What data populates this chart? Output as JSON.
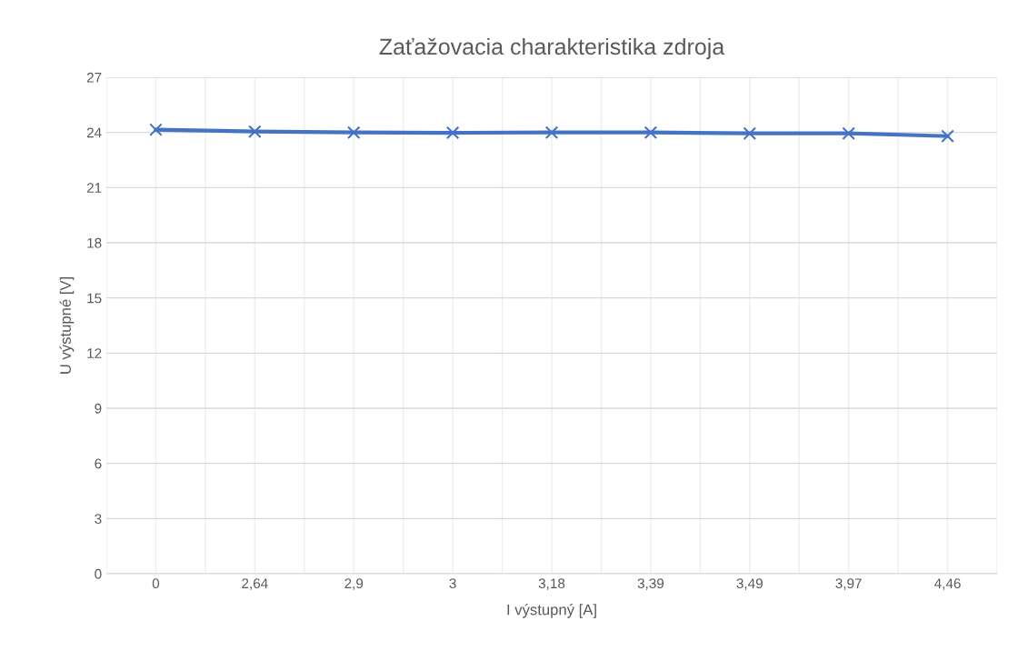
{
  "chart_data": {
    "type": "line",
    "title": "Zaťažovacia charakteristika zdroja",
    "xlabel": "I výstupný [A]",
    "ylabel": "U výstupné [V]",
    "categories": [
      "0",
      "2,64",
      "2,9",
      "3",
      "3,18",
      "3,39",
      "3,49",
      "3,97",
      "4,46"
    ],
    "series": [
      {
        "color": "#4472c4",
        "values": [
          24.15,
          24.05,
          24.0,
          23.98,
          24.0,
          24.0,
          23.95,
          23.95,
          23.8
        ]
      }
    ],
    "ylim": [
      0,
      27
    ],
    "yticks": [
      0,
      3,
      6,
      9,
      12,
      15,
      18,
      21,
      24,
      27
    ],
    "grid": true,
    "marker": "cross",
    "line_style": "solid"
  }
}
